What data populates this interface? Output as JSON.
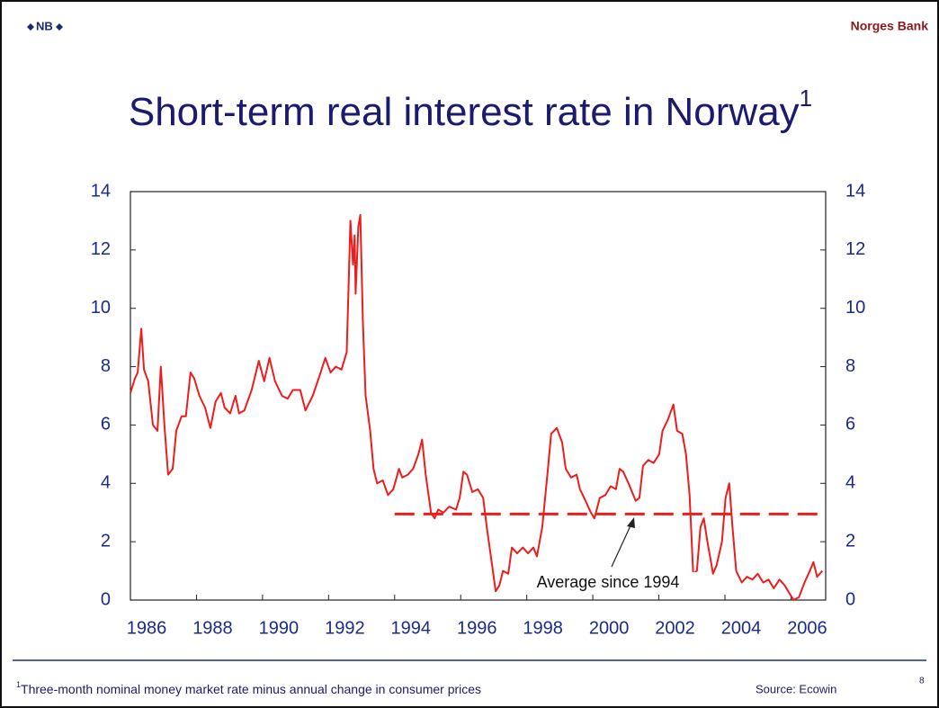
{
  "header": {
    "logo": "NB",
    "brand": "Norges Bank"
  },
  "footer": {
    "footnote_marker": "1",
    "footnote": "Three-month nominal money market rate minus annual change in consumer prices",
    "source": "Source: Ecowin",
    "page": "8"
  },
  "chart_data": {
    "type": "line",
    "title": "Short-term real interest rate in Norway",
    "title_superscript": "1",
    "xlim": [
      1986,
      2007.05
    ],
    "xticks": [
      1986,
      1988,
      1990,
      1992,
      1994,
      1996,
      1998,
      2000,
      2002,
      2004,
      2006
    ],
    "ylim": [
      0,
      14
    ],
    "yticks": [
      0,
      2,
      4,
      6,
      8,
      10,
      12,
      14
    ],
    "y2lim": [
      0,
      14
    ],
    "y2ticks": [
      0,
      2,
      4,
      6,
      8,
      10,
      12,
      14
    ],
    "grid": false,
    "series": [
      {
        "color": "#ee1c1c",
        "x": [
          1986.0,
          1986.14,
          1986.22,
          1986.33,
          1986.41,
          1986.54,
          1986.68,
          1986.82,
          1986.92,
          1987.03,
          1987.14,
          1987.28,
          1987.39,
          1987.55,
          1987.68,
          1987.82,
          1987.93,
          1988.09,
          1988.26,
          1988.42,
          1988.58,
          1988.74,
          1988.85,
          1989.02,
          1989.18,
          1989.29,
          1989.45,
          1989.67,
          1989.89,
          1990.05,
          1990.21,
          1990.38,
          1990.59,
          1990.76,
          1990.92,
          1991.14,
          1991.3,
          1991.52,
          1991.73,
          1991.9,
          1992.06,
          1992.22,
          1992.39,
          1992.55,
          1992.66,
          1992.74,
          1992.79,
          1992.82,
          1992.9,
          1992.96,
          1993.04,
          1993.12,
          1993.26,
          1993.36,
          1993.47,
          1993.64,
          1993.8,
          1993.96,
          1994.13,
          1994.23,
          1994.4,
          1994.56,
          1994.72,
          1994.83,
          1994.94,
          1995.1,
          1995.21,
          1995.32,
          1995.48,
          1995.65,
          1995.86,
          1995.97,
          1996.08,
          1996.19,
          1996.35,
          1996.52,
          1996.68,
          1996.79,
          1996.95,
          1997.06,
          1997.17,
          1997.28,
          1997.44,
          1997.55,
          1997.71,
          1997.88,
          1998.04,
          1998.2,
          1998.31,
          1998.47,
          1998.64,
          1998.74,
          1998.91,
          1999.07,
          1999.18,
          1999.34,
          1999.51,
          1999.61,
          1999.78,
          1999.94,
          2000.05,
          2000.21,
          2000.38,
          2000.54,
          2000.7,
          2000.81,
          2000.92,
          2001.08,
          2001.19,
          2001.3,
          2001.41,
          2001.52,
          2001.68,
          2001.84,
          2002.01,
          2002.11,
          2002.28,
          2002.44,
          2002.55,
          2002.71,
          2002.82,
          2002.93,
          2003.04,
          2003.15,
          2003.26,
          2003.36,
          2003.47,
          2003.64,
          2003.75,
          2003.91,
          2004.02,
          2004.13,
          2004.23,
          2004.34,
          2004.51,
          2004.67,
          2004.83,
          2004.99,
          2005.16,
          2005.32,
          2005.48,
          2005.65,
          2005.81,
          2005.97,
          2006.08,
          2006.24,
          2006.41,
          2006.57,
          2006.68,
          2006.79,
          2006.95
        ],
        "values": [
          7.1,
          7.6,
          7.8,
          9.3,
          7.9,
          7.5,
          6.0,
          5.8,
          8.0,
          6.0,
          4.3,
          4.5,
          5.8,
          6.3,
          6.3,
          7.8,
          7.6,
          7.0,
          6.6,
          5.9,
          6.8,
          7.1,
          6.6,
          6.4,
          7.0,
          6.4,
          6.5,
          7.2,
          8.2,
          7.5,
          8.3,
          7.5,
          7.0,
          6.9,
          7.2,
          7.2,
          6.5,
          7.0,
          7.7,
          8.3,
          7.8,
          8.0,
          7.9,
          8.5,
          13.0,
          11.5,
          12.5,
          10.5,
          12.8,
          13.2,
          9.5,
          7.0,
          5.8,
          4.5,
          4.0,
          4.1,
          3.6,
          3.8,
          4.5,
          4.2,
          4.3,
          4.5,
          5.0,
          5.5,
          4.3,
          3.0,
          2.8,
          3.1,
          3.0,
          3.2,
          3.1,
          3.5,
          4.4,
          4.3,
          3.7,
          3.8,
          3.5,
          2.5,
          1.2,
          0.3,
          0.5,
          1.0,
          0.9,
          1.8,
          1.6,
          1.8,
          1.6,
          1.8,
          1.5,
          2.5,
          4.5,
          5.7,
          5.9,
          5.4,
          4.5,
          4.2,
          4.3,
          3.8,
          3.4,
          3.0,
          2.8,
          3.5,
          3.6,
          3.9,
          3.8,
          4.5,
          4.4,
          4.0,
          3.7,
          3.4,
          3.5,
          4.6,
          4.8,
          4.7,
          5.0,
          5.8,
          6.2,
          6.7,
          5.8,
          5.7,
          5.0,
          3.6,
          0.9,
          1.0,
          2.5,
          2.8,
          2.0,
          0.9,
          1.2,
          2.0,
          3.5,
          4.0,
          2.5,
          1.0,
          0.6,
          0.8,
          0.7,
          0.9,
          0.6,
          0.7,
          0.4,
          0.7,
          0.5,
          0.2,
          0.0,
          0.1,
          0.6,
          1.0,
          1.3,
          0.8,
          1.0
        ]
      }
    ],
    "reference_line": {
      "value": 2.95,
      "from": 1994,
      "color": "#ee1c1c",
      "dashed": true
    },
    "annotation": "Average since 1994"
  }
}
